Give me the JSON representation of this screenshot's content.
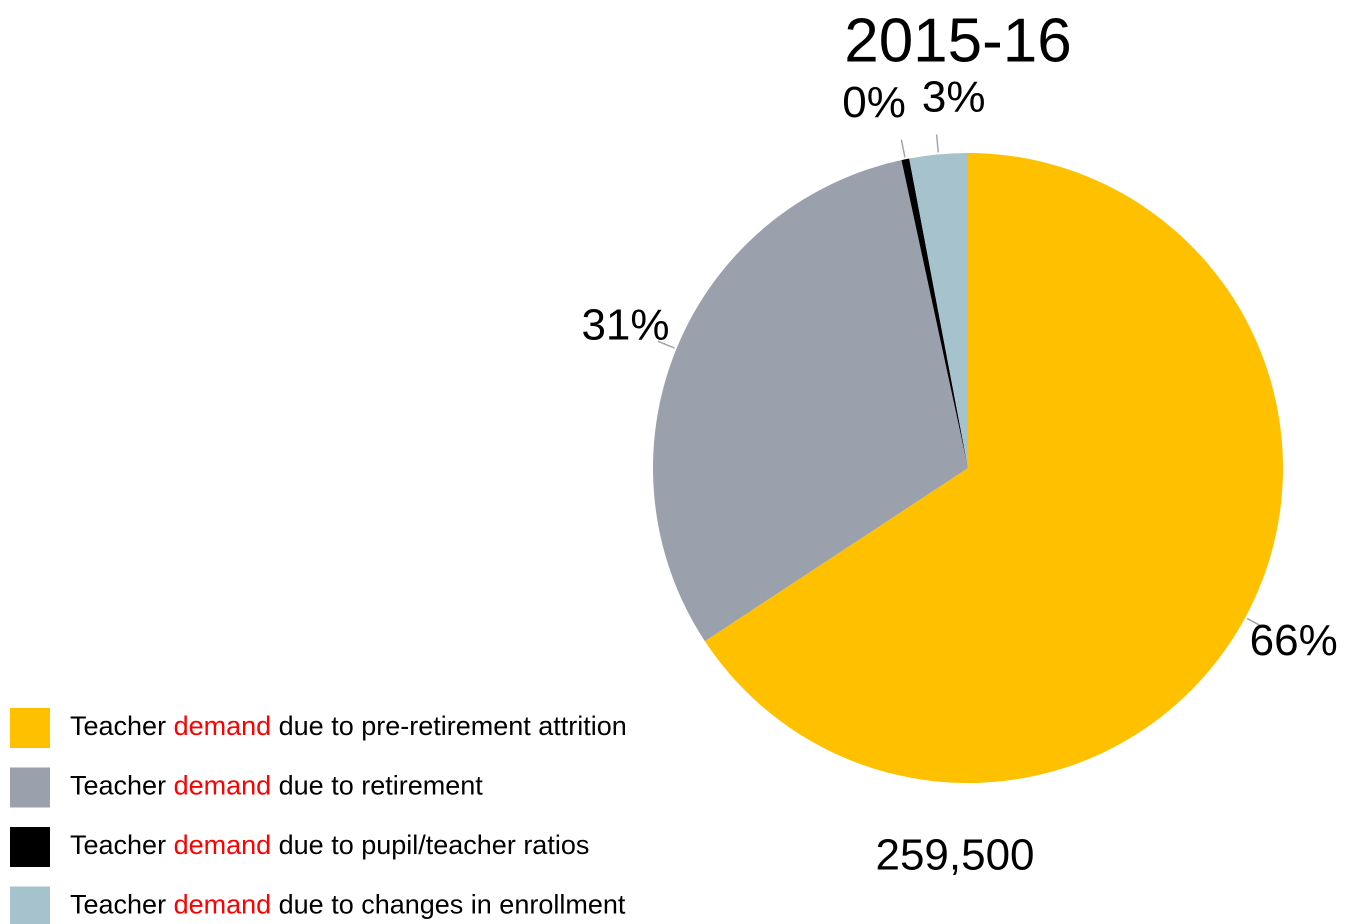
{
  "chart_data": {
    "type": "pie",
    "title": "2015-16",
    "categories": [
      "Teacher demand due to pre-retirement attrition",
      "Teacher demand due to retirement",
      "Teacher demand due to pupil/teacher ratios",
      "Teacher demand due to changes in enrollment"
    ],
    "values": [
      66,
      31,
      0.4,
      3
    ],
    "value_labels": [
      "66%",
      "31%",
      "0%",
      "3%"
    ],
    "colors": [
      "#ffc000",
      "#9aa1ac",
      "#000000",
      "#a6c2cc"
    ],
    "highlight": {
      "text": "demand",
      "color": "#ff0000"
    },
    "total": {
      "value": 259500,
      "label": "259,500"
    },
    "legend": "bottom-left"
  }
}
